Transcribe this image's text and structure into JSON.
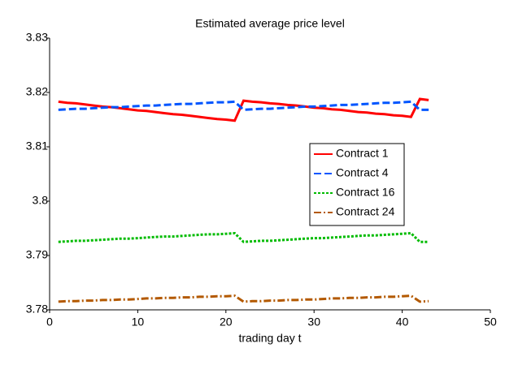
{
  "chart_data": {
    "type": "line",
    "title": "Estimated average price level",
    "x_label": "trading day t",
    "x": [
      1,
      2,
      3,
      4,
      5,
      6,
      7,
      8,
      9,
      10,
      11,
      12,
      13,
      14,
      15,
      16,
      17,
      18,
      19,
      20,
      21,
      22,
      23,
      24,
      25,
      26,
      27,
      28,
      29,
      30,
      31,
      32,
      33,
      34,
      35,
      36,
      37,
      38,
      39,
      40,
      41,
      42,
      43
    ],
    "xlim": [
      0,
      50
    ],
    "xticks": [
      0,
      10,
      20,
      30,
      40,
      50
    ],
    "ylim": [
      3.78,
      3.83
    ],
    "yticks": [
      3.78,
      3.79,
      3.8,
      3.81,
      3.82,
      3.83
    ],
    "legend": "right",
    "series": [
      {
        "name": "Contract 1",
        "color": "#ff0000",
        "dash": "solid",
        "values": [
          3.8183,
          3.8181,
          3.818,
          3.8178,
          3.8176,
          3.8174,
          3.8173,
          3.8171,
          3.8169,
          3.8167,
          3.8166,
          3.8164,
          3.8162,
          3.816,
          3.8159,
          3.8157,
          3.8155,
          3.8153,
          3.8151,
          3.815,
          3.8148,
          3.8185,
          3.8183,
          3.8182,
          3.818,
          3.8179,
          3.8177,
          3.8176,
          3.8174,
          3.8172,
          3.8171,
          3.8169,
          3.8168,
          3.8166,
          3.8164,
          3.8163,
          3.8161,
          3.816,
          3.8158,
          3.8157,
          3.8155,
          3.8188,
          3.8186
        ]
      },
      {
        "name": "Contract 4",
        "color": "#0055ff",
        "dash": "dashed",
        "values": [
          3.8168,
          3.8169,
          3.817,
          3.817,
          3.8171,
          3.8172,
          3.8173,
          3.8173,
          3.8174,
          3.8175,
          3.8176,
          3.8176,
          3.8177,
          3.8178,
          3.8179,
          3.8179,
          3.818,
          3.8181,
          3.8182,
          3.8182,
          3.8183,
          3.8168,
          3.8169,
          3.817,
          3.817,
          3.8171,
          3.8172,
          3.8173,
          3.8174,
          3.8174,
          3.8175,
          3.8176,
          3.8177,
          3.8177,
          3.8178,
          3.8179,
          3.818,
          3.8181,
          3.8181,
          3.8182,
          3.8183,
          3.8168,
          3.8168
        ]
      },
      {
        "name": "Contract 16",
        "color": "#00bb00",
        "dash": "dotted",
        "values": [
          3.7925,
          3.7926,
          3.7927,
          3.7927,
          3.7928,
          3.7929,
          3.793,
          3.7931,
          3.7931,
          3.7932,
          3.7933,
          3.7934,
          3.7935,
          3.7935,
          3.7936,
          3.7937,
          3.7938,
          3.7939,
          3.7939,
          3.794,
          3.7941,
          3.7925,
          3.7926,
          3.7927,
          3.7927,
          3.7928,
          3.7929,
          3.793,
          3.7931,
          3.7932,
          3.7932,
          3.7933,
          3.7934,
          3.7935,
          3.7936,
          3.7937,
          3.7937,
          3.7938,
          3.7939,
          3.794,
          3.7941,
          3.7925,
          3.7925
        ]
      },
      {
        "name": "Contract 24",
        "color": "#b35900",
        "dash": "dashdot",
        "values": [
          3.7815,
          3.7816,
          3.7816,
          3.7817,
          3.7817,
          3.7818,
          3.7818,
          3.7819,
          3.7819,
          3.782,
          3.7821,
          3.7821,
          3.7822,
          3.7822,
          3.7823,
          3.7823,
          3.7824,
          3.7824,
          3.7825,
          3.7825,
          3.7826,
          3.7815,
          3.7816,
          3.7816,
          3.7817,
          3.7817,
          3.7818,
          3.7818,
          3.7819,
          3.7819,
          3.782,
          3.7821,
          3.7821,
          3.7822,
          3.7822,
          3.7823,
          3.7823,
          3.7824,
          3.7824,
          3.7825,
          3.7826,
          3.7815,
          3.7816
        ]
      }
    ]
  }
}
